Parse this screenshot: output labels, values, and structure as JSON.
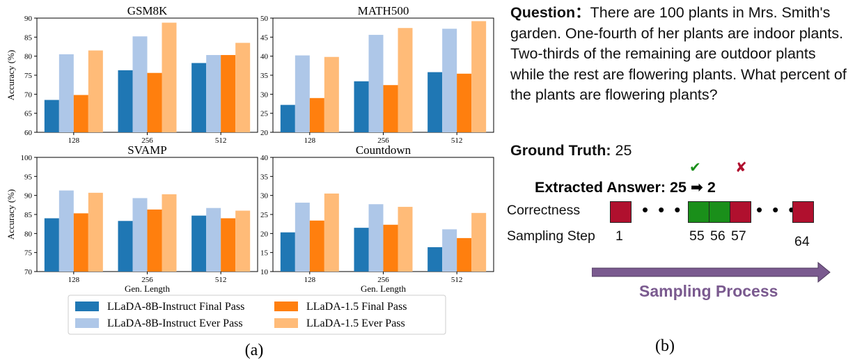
{
  "colors": {
    "final_8b": "#1f77b4",
    "ever_8b": "#aec7e8",
    "final_15": "#ff7f0e",
    "ever_15": "#ffbb78",
    "correct": "#1a8f1a",
    "wrong": "#b0102e",
    "process": "#7a5a8f"
  },
  "chart_data": [
    {
      "type": "bar",
      "title": "GSM8K",
      "xlabel": "",
      "ylabel": "Accuracy (%)",
      "categories": [
        "128",
        "256",
        "512"
      ],
      "ylim": [
        60,
        90
      ],
      "yticks": [
        "60",
        "65",
        "70",
        "75",
        "80",
        "85",
        "90"
      ],
      "series": [
        {
          "name": "LLaDA-8B-Instruct Final Pass",
          "values": [
            68.5,
            76.3,
            78.2
          ]
        },
        {
          "name": "LLaDA-8B-Instruct Ever Pass",
          "values": [
            80.5,
            85.2,
            80.3
          ]
        },
        {
          "name": "LLaDA-1.5 Final Pass",
          "values": [
            69.8,
            75.6,
            80.3
          ]
        },
        {
          "name": "LLaDA-1.5 Ever Pass",
          "values": [
            81.5,
            88.8,
            83.5
          ]
        }
      ]
    },
    {
      "type": "bar",
      "title": "MATH500",
      "xlabel": "",
      "ylabel": "",
      "categories": [
        "128",
        "256",
        "512"
      ],
      "ylim": [
        20,
        50
      ],
      "yticks": [
        "20",
        "25",
        "30",
        "35",
        "40",
        "45",
        "50"
      ],
      "series": [
        {
          "name": "LLaDA-8B-Instruct Final Pass",
          "values": [
            27.2,
            33.4,
            35.8
          ]
        },
        {
          "name": "LLaDA-8B-Instruct Ever Pass",
          "values": [
            40.2,
            45.6,
            47.2
          ]
        },
        {
          "name": "LLaDA-1.5 Final Pass",
          "values": [
            29.0,
            32.4,
            35.4
          ]
        },
        {
          "name": "LLaDA-1.5 Ever Pass",
          "values": [
            39.8,
            47.4,
            49.2
          ]
        }
      ]
    },
    {
      "type": "bar",
      "title": "SVAMP",
      "xlabel": "Gen. Length",
      "ylabel": "Accuracy (%)",
      "categories": [
        "128",
        "256",
        "512"
      ],
      "ylim": [
        70,
        100
      ],
      "yticks": [
        "70",
        "75",
        "80",
        "85",
        "90",
        "95",
        "100"
      ],
      "series": [
        {
          "name": "LLaDA-8B-Instruct Final Pass",
          "values": [
            84.0,
            83.3,
            84.7
          ]
        },
        {
          "name": "LLaDA-8B-Instruct Ever Pass",
          "values": [
            91.3,
            89.3,
            86.7
          ]
        },
        {
          "name": "LLaDA-1.5 Final Pass",
          "values": [
            85.3,
            86.3,
            84.0
          ]
        },
        {
          "name": "LLaDA-1.5 Ever Pass",
          "values": [
            90.7,
            90.3,
            86.0
          ]
        }
      ]
    },
    {
      "type": "bar",
      "title": "Countdown",
      "xlabel": "Gen. Length",
      "ylabel": "",
      "categories": [
        "128",
        "256",
        "512"
      ],
      "ylim": [
        10,
        40
      ],
      "yticks": [
        "10",
        "15",
        "20",
        "25",
        "30",
        "35",
        "40"
      ],
      "series": [
        {
          "name": "LLaDA-8B-Instruct Final Pass",
          "values": [
            20.3,
            21.5,
            16.4
          ]
        },
        {
          "name": "LLaDA-8B-Instruct Ever Pass",
          "values": [
            28.1,
            27.7,
            21.1
          ]
        },
        {
          "name": "LLaDA-1.5 Final Pass",
          "values": [
            23.4,
            22.3,
            18.8
          ]
        },
        {
          "name": "LLaDA-1.5 Ever Pass",
          "values": [
            30.5,
            27.0,
            25.4
          ]
        }
      ]
    }
  ],
  "legend": [
    "LLaDA-8B-Instruct Final Pass",
    "LLaDA-1.5 Final Pass",
    "LLaDA-8B-Instruct Ever Pass",
    "LLaDA-1.5 Ever Pass"
  ],
  "caption_a": "(a)",
  "caption_b": "(b)",
  "example": {
    "question_label": "Question：",
    "question_text": "There are 100 plants in Mrs. Smith's garden. One-fourth of her plants are indoor plants. Two-thirds of the remaining are outdoor plants while the rest are flowering plants. What percent of the plants are flowering plants?",
    "ground_truth_label": "Ground Truth:",
    "ground_truth_value": "25",
    "extracted_label": "Extracted Answer:",
    "extracted_first": "25",
    "arrow": "➡",
    "extracted_second": "2",
    "check_mark": "✔",
    "cross_mark": "✘",
    "correctness_label": "Correctness",
    "sampling_step_label": "Sampling Step",
    "dots": "•••",
    "steps": [
      "1",
      "55",
      "56",
      "57",
      "64"
    ],
    "process_label": "Sampling Process"
  }
}
